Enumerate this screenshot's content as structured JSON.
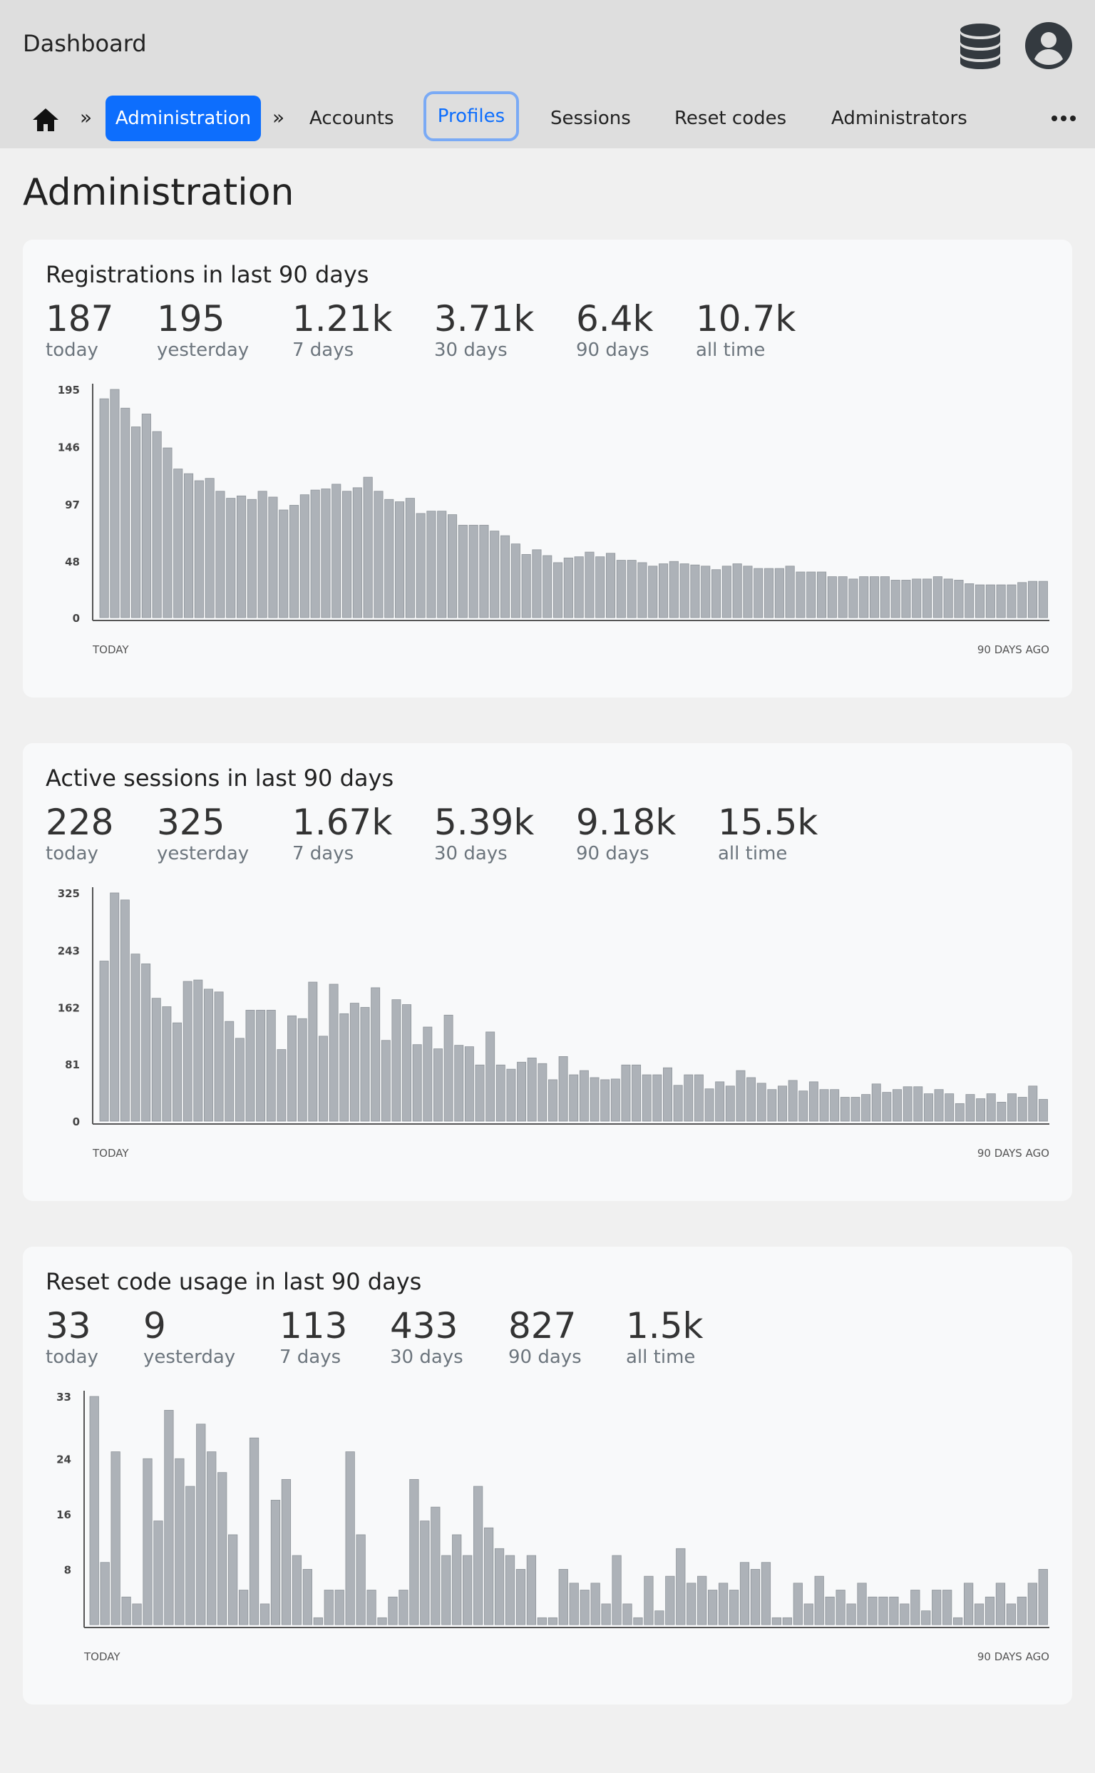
{
  "header": {
    "title": "Dashboard",
    "icons": [
      "database-icon",
      "user-avatar-icon"
    ]
  },
  "breadcrumb": {
    "home_icon": "home-icon",
    "separator": "»"
  },
  "nav": {
    "items": [
      {
        "label": "Administration",
        "state": "active"
      },
      {
        "label": "Accounts"
      },
      {
        "label": "Profiles",
        "state": "focused"
      },
      {
        "label": "Sessions"
      },
      {
        "label": "Reset codes"
      },
      {
        "label": "Administrators"
      }
    ],
    "more_icon": "more-horizontal-icon"
  },
  "page_title": "Administration",
  "cards": [
    {
      "title": "Registrations in last 90 days",
      "stats": [
        {
          "value": "187",
          "label": "today"
        },
        {
          "value": "195",
          "label": "yesterday"
        },
        {
          "value": "1.21k",
          "label": "7 days"
        },
        {
          "value": "3.71k",
          "label": "30 days"
        },
        {
          "value": "6.4k",
          "label": "90 days"
        },
        {
          "value": "10.7k",
          "label": "all time"
        }
      ]
    },
    {
      "title": "Active sessions in last 90 days",
      "stats": [
        {
          "value": "228",
          "label": "today"
        },
        {
          "value": "325",
          "label": "yesterday"
        },
        {
          "value": "1.67k",
          "label": "7 days"
        },
        {
          "value": "5.39k",
          "label": "30 days"
        },
        {
          "value": "9.18k",
          "label": "90 days"
        },
        {
          "value": "15.5k",
          "label": "all time"
        }
      ]
    },
    {
      "title": "Reset code usage in last 90 days",
      "stats": [
        {
          "value": "33",
          "label": "today"
        },
        {
          "value": "9",
          "label": "yesterday"
        },
        {
          "value": "113",
          "label": "7 days"
        },
        {
          "value": "433",
          "label": "30 days"
        },
        {
          "value": "827",
          "label": "90 days"
        },
        {
          "value": "1.5k",
          "label": "all time"
        }
      ]
    }
  ],
  "chart_data": [
    {
      "type": "bar",
      "xlabel_left": "TODAY",
      "xlabel_right": "90 DAYS AGO",
      "yticks": [
        "0",
        "48",
        "97",
        "146",
        "195"
      ],
      "ylim": [
        0,
        195
      ],
      "values": [
        187,
        195,
        179,
        163,
        174,
        159,
        145,
        127,
        123,
        117,
        119,
        108,
        102,
        104,
        101,
        108,
        103,
        92,
        96,
        105,
        109,
        110,
        114,
        108,
        111,
        120,
        108,
        101,
        99,
        102,
        89,
        91,
        91,
        88,
        79,
        79,
        79,
        74,
        70,
        63,
        54,
        58,
        53,
        47,
        51,
        52,
        56,
        52,
        55,
        49,
        49,
        47,
        44,
        46,
        48,
        46,
        45,
        44,
        41,
        44,
        46,
        44,
        42,
        42,
        42,
        44,
        39,
        39,
        39,
        35,
        35,
        33,
        35,
        35,
        35,
        32,
        32,
        33,
        33,
        35,
        33,
        32,
        29,
        28,
        28,
        28,
        28,
        30,
        31,
        31
      ],
      "bar_color": "#adb2b8"
    },
    {
      "type": "bar",
      "xlabel_left": "TODAY",
      "xlabel_right": "90 DAYS AGO",
      "yticks": [
        "0",
        "81",
        "162",
        "243",
        "325"
      ],
      "ylim": [
        0,
        325
      ],
      "values": [
        228,
        325,
        315,
        238,
        224,
        175,
        163,
        140,
        199,
        201,
        188,
        184,
        142,
        118,
        158,
        158,
        158,
        102,
        150,
        146,
        198,
        121,
        195,
        153,
        168,
        162,
        190,
        115,
        173,
        166,
        109,
        134,
        103,
        151,
        108,
        106,
        80,
        127,
        80,
        74,
        84,
        90,
        82,
        59,
        92,
        66,
        72,
        62,
        59,
        60,
        80,
        80,
        66,
        66,
        76,
        51,
        66,
        66,
        46,
        56,
        50,
        72,
        62,
        54,
        45,
        50,
        58,
        43,
        56,
        45,
        45,
        34,
        34,
        38,
        53,
        41,
        45,
        49,
        49,
        39,
        45,
        39,
        25,
        38,
        32,
        39,
        27,
        39,
        34,
        50,
        31
      ],
      "bar_color": "#adb2b8"
    },
    {
      "type": "bar",
      "xlabel_left": "TODAY",
      "xlabel_right": "90 DAYS AGO",
      "yticks": [
        "8",
        "16",
        "24",
        "33"
      ],
      "ylim": [
        0,
        33
      ],
      "values": [
        33,
        9,
        25,
        4,
        3,
        24,
        15,
        31,
        24,
        20,
        29,
        25,
        22,
        13,
        5,
        27,
        3,
        18,
        21,
        10,
        8,
        1,
        5,
        5,
        25,
        13,
        5,
        1,
        4,
        5,
        21,
        15,
        17,
        10,
        13,
        10,
        20,
        14,
        11,
        10,
        8,
        10,
        1,
        1,
        8,
        6,
        5,
        6,
        3,
        10,
        3,
        1,
        7,
        2,
        7,
        11,
        6,
        7,
        5,
        6,
        5,
        9,
        8,
        9,
        1,
        1,
        6,
        3,
        7,
        4,
        5,
        3,
        6,
        4,
        4,
        4,
        3,
        5,
        2,
        5,
        5,
        1,
        6,
        3,
        4,
        6,
        3,
        4,
        6,
        8
      ],
      "bar_color": "#adb2b8"
    }
  ]
}
